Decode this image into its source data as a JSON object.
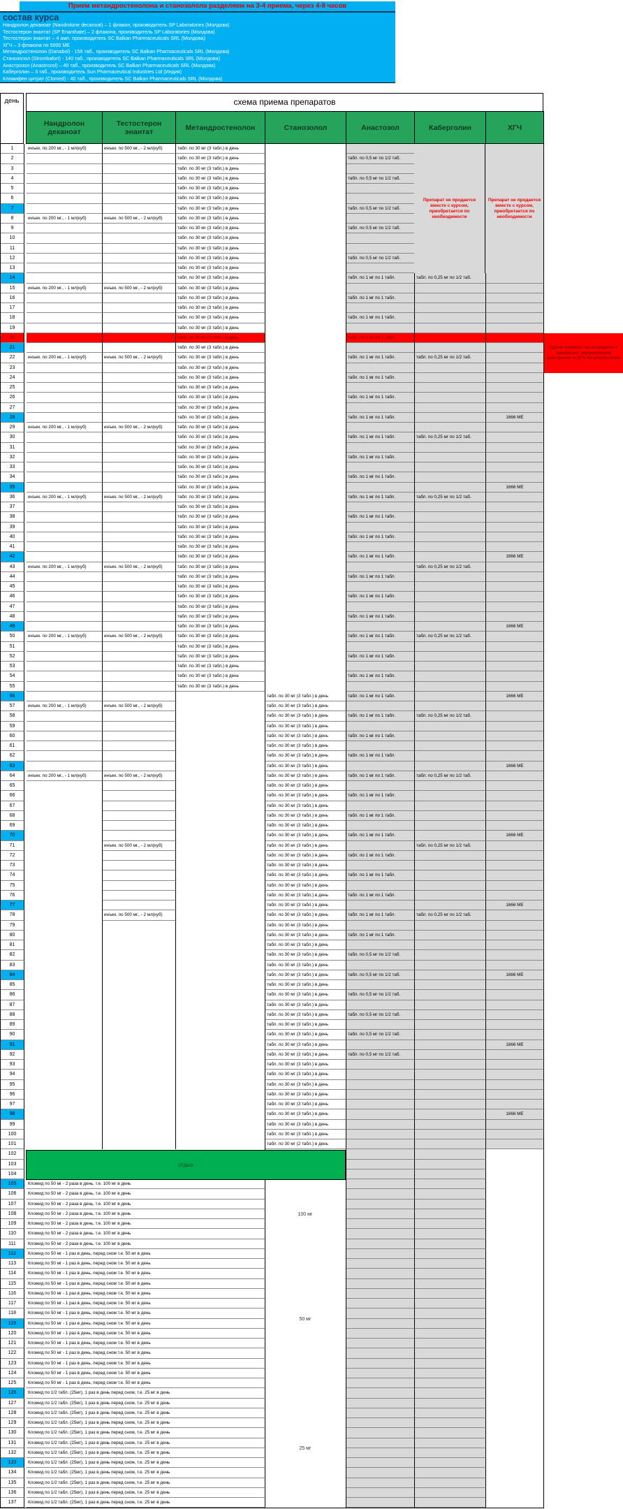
{
  "title": "Прием метандростенолона и станозолола разделяем на 3-4 приема, через 4-8 часов",
  "composition": {
    "header": "состав курса",
    "items": [
      "Нандролон деканоат (Nandrolone decanoat) – 1 флакон, производитель SP Laboratories (Молдова)",
      "Тестостерон энантат (SP Enanthate) – 2 флакона, производитель SP Laboratories (Молдова)",
      "Тестостерон энантат – 4 амп. производитель SC Balkan Pharmaceuticals SRL (Молдова)",
      "ХГЧ – 3 флакона по 5000 МЕ",
      "Метандростенолон (Danabol) - 159 таб., производитель SC Balkan Pharmaceuticals SRL (Молдова)",
      "Станозолол (Strombafort) - 140 таб., производитель SC Balkan Pharmaceuticals SRL (Молдова)",
      "Анастрозол (Anastrozol) – 40 таб., производитель SC Balkan Pharmaceuticals SRL (Молдова)",
      "Каберголин – 3 таб., производитель Sun Pharmaceutical Industries Ltd (Индия)",
      "Кломифен цитрат (Clomed) - 40 таб., производитель SC Balkan Pharmaceuticals SRL (Молдова)"
    ]
  },
  "table": {
    "day_header": "день",
    "scheme_header": "схема приема препаратов",
    "columns": [
      "Нандролон деканоат",
      "Тестостерон энантат",
      "Метандростенолон",
      "Станозолол",
      "Анастозол",
      "Каберголин",
      "ХГЧ"
    ]
  },
  "legend": {
    "nan": "инъек. по 200 мг., - 1 мл(куб)",
    "test": "инъек. по 500 мг., - 2 мл(куб)",
    "met3": "табл. по 30 мг (3 табл.) в день",
    "stan2": "табл. по 30 мг (2 табл.) в день",
    "ana05": "табл. по 0,5 мг по 1/2 таб.",
    "ana1": "табл. по 1 мг по 1 табл.",
    "cab025": "табл. по 0,25 мг по 1/2 таб.",
    "hcg": "1666 МЕ",
    "clomid100": "Кломид по 50 мг - 2 раза в день,  т.е. 100 мг в день",
    "clomid50": "Кломид по 50 мг - 1 раз в день, перед сном  т.е. 50 мг в день",
    "clomid25": "Кломид по 1/2 табл. (25мг), 1 раз в день перед сном, т.е. 25 мг в день"
  },
  "notes": {
    "not_sold": "Препарат не продается вместе с курсом, приобретается по необходимости",
    "red_note": "Сдаем анализы на эстрадиол и пролактин, корректируем анастрозол и ХГЧ по результатам",
    "rest": "отдых"
  },
  "schedule": {
    "total_days": 137,
    "highlighted_days": [
      7,
      14,
      21,
      28,
      35,
      42,
      49,
      56,
      63,
      70,
      77,
      84,
      91,
      98,
      105,
      112,
      119,
      126,
      133
    ],
    "red_day": 20,
    "nandrolone_days": [
      1,
      8,
      15,
      22,
      29,
      36,
      43,
      50,
      57,
      64
    ],
    "testosterone_days": [
      1,
      8,
      15,
      22,
      29,
      36,
      43,
      50,
      57,
      64,
      71,
      78
    ],
    "methandrostenolone_range": [
      1,
      55
    ],
    "stanozolol_range": [
      56,
      100
    ],
    "stanozolol_last_day": 101,
    "anastrozole_half_days": [
      2,
      4,
      7,
      9,
      12,
      82,
      84,
      86,
      88,
      90,
      92
    ],
    "anastrozole_full_days": [
      14,
      16,
      18,
      20,
      22,
      24,
      26,
      28,
      30,
      32,
      34,
      36,
      38,
      40,
      42,
      44,
      46,
      48,
      50,
      52,
      54,
      56,
      58,
      60,
      62,
      64,
      66,
      68,
      70,
      72,
      74,
      76,
      78,
      80
    ],
    "cabergoline_days": [
      14,
      22,
      30,
      36,
      43,
      50,
      58,
      64,
      71,
      78
    ],
    "hcg_days": [
      28,
      35,
      42,
      49,
      56,
      63,
      70,
      77,
      84,
      91,
      98
    ],
    "rest_days_range": [
      102,
      104
    ],
    "clomid_blocks": [
      {
        "from": 105,
        "to": 111,
        "text_key": "clomid100",
        "dose": "100 мг"
      },
      {
        "from": 112,
        "to": 125,
        "text_key": "clomid50",
        "dose": "50 мг"
      },
      {
        "from": 126,
        "to": 137,
        "text_key": "clomid25",
        "dose": "25 мг"
      }
    ]
  }
}
